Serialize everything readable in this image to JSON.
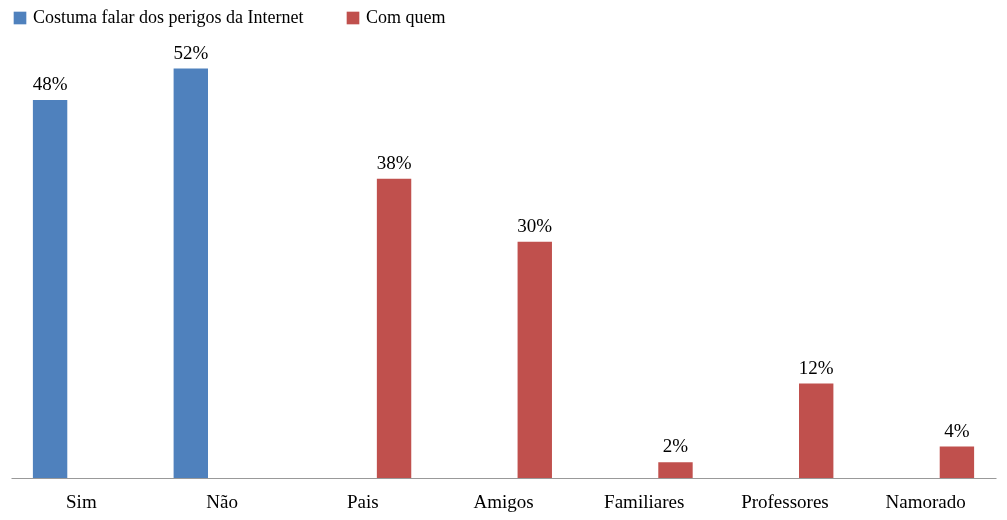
{
  "chart_data": {
    "type": "bar",
    "categories": [
      "Sim",
      "Não",
      "Pais",
      "Amigos",
      "Familiares",
      "Professores",
      "Namorado"
    ],
    "series": [
      {
        "name": "Costuma falar dos perigos da Internet",
        "color": "#4f81bd",
        "values": [
          48,
          52,
          null,
          null,
          null,
          null,
          null
        ],
        "value_labels": [
          "48%",
          "52%",
          null,
          null,
          null,
          null,
          null
        ]
      },
      {
        "name": "Com quem",
        "color": "#c0504d",
        "values": [
          null,
          null,
          38,
          30,
          2,
          12,
          4
        ],
        "value_labels": [
          null,
          null,
          "38%",
          "30%",
          "2%",
          "12%",
          "4%"
        ]
      }
    ],
    "legend": "top",
    "grid": false
  }
}
